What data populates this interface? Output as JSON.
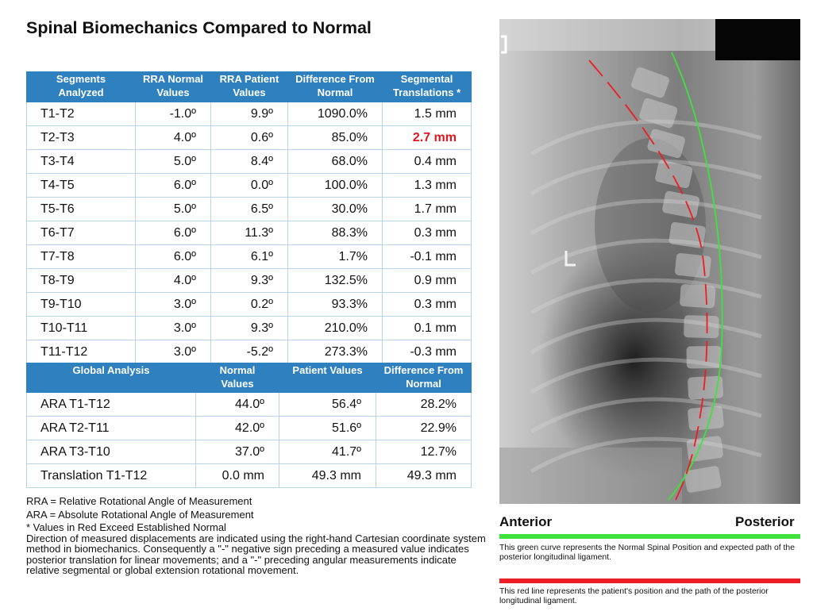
{
  "title": "Spinal Biomechanics Compared to Normal",
  "segment_table": {
    "headers": [
      [
        "Segments",
        "Analyzed"
      ],
      [
        "RRA Normal",
        "Values"
      ],
      [
        "RRA Patient",
        "Values"
      ],
      [
        "Difference From",
        "Normal"
      ],
      [
        "Segmental",
        "Translations *"
      ]
    ],
    "rows": [
      {
        "segment": "T1-T2",
        "normal": "-1.0º",
        "patient": "9.9º",
        "difference": "1090.0%",
        "translation": "1.5 mm",
        "exceeds": false
      },
      {
        "segment": "T2-T3",
        "normal": "4.0º",
        "patient": "0.6º",
        "difference": "85.0%",
        "translation": "2.7 mm",
        "exceeds": true
      },
      {
        "segment": "T3-T4",
        "normal": "5.0º",
        "patient": "8.4º",
        "difference": "68.0%",
        "translation": "0.4 mm",
        "exceeds": false
      },
      {
        "segment": "T4-T5",
        "normal": "6.0º",
        "patient": "0.0º",
        "difference": "100.0%",
        "translation": "1.3 mm",
        "exceeds": false
      },
      {
        "segment": "T5-T6",
        "normal": "5.0º",
        "patient": "6.5º",
        "difference": "30.0%",
        "translation": "1.7 mm",
        "exceeds": false
      },
      {
        "segment": "T6-T7",
        "normal": "6.0º",
        "patient": "11.3º",
        "difference": "88.3%",
        "translation": "0.3 mm",
        "exceeds": false
      },
      {
        "segment": "T7-T8",
        "normal": "6.0º",
        "patient": "6.1º",
        "difference": "1.7%",
        "translation": "-0.1 mm",
        "exceeds": false
      },
      {
        "segment": "T8-T9",
        "normal": "4.0º",
        "patient": "9.3º",
        "difference": "132.5%",
        "translation": "0.9 mm",
        "exceeds": false
      },
      {
        "segment": "T9-T10",
        "normal": "3.0º",
        "patient": "0.2º",
        "difference": "93.3%",
        "translation": "0.3 mm",
        "exceeds": false
      },
      {
        "segment": "T10-T11",
        "normal": "3.0º",
        "patient": "9.3º",
        "difference": "210.0%",
        "translation": "0.1 mm",
        "exceeds": false
      },
      {
        "segment": "T11-T12",
        "normal": "3.0º",
        "patient": "-5.2º",
        "difference": "273.3%",
        "translation": "-0.3 mm",
        "exceeds": false
      }
    ]
  },
  "global_table": {
    "headers": [
      [
        "Global Analysis"
      ],
      [
        "Normal",
        "Values"
      ],
      [
        "Patient Values"
      ],
      [
        "Difference From",
        "Normal"
      ]
    ],
    "rows": [
      {
        "measure": "ARA T1-T12",
        "normal": "44.0º",
        "patient": "56.4º",
        "difference": "28.2%"
      },
      {
        "measure": "ARA T2-T11",
        "normal": "42.0º",
        "patient": "51.6º",
        "difference": "22.9%"
      },
      {
        "measure": "ARA T3-T10",
        "normal": "37.0º",
        "patient": "41.7º",
        "difference": "12.7%"
      },
      {
        "measure": "Translation T1-T12",
        "normal": "0.0 mm",
        "patient": "49.3 mm",
        "difference": "49.3 mm"
      }
    ]
  },
  "notes": {
    "rra": "RRA = Relative Rotational Angle of Measurement",
    "ara": "ARA = Absolute Rotational Angle of Measurement",
    "red_note": "* Values in Red Exceed Established Normal",
    "direction": "Direction of measured displacements are indicated using the right-hand Cartesian coordinate system method in biomechanics. Consequently a \"-\" negative sign preceding a measured value indicates posterior translation for linear movements; and a \"-\" preceding angular measurements indicate relative segmental or global extension rotational movement."
  },
  "legend": {
    "anterior": "Anterior",
    "posterior": "Posterior",
    "green_caption": "This green curve represents the Normal Spinal Position and expected path of the posterior longitudinal ligament.",
    "red_caption": "This red line represents the patient's position and the path of the posterior longitudinal ligament."
  },
  "colors": {
    "header_blue": "#2f80bf",
    "exceeds_red": "#e0171f",
    "normal_curve_green": "#3ee23b",
    "patient_line_red": "#ee1c24"
  }
}
